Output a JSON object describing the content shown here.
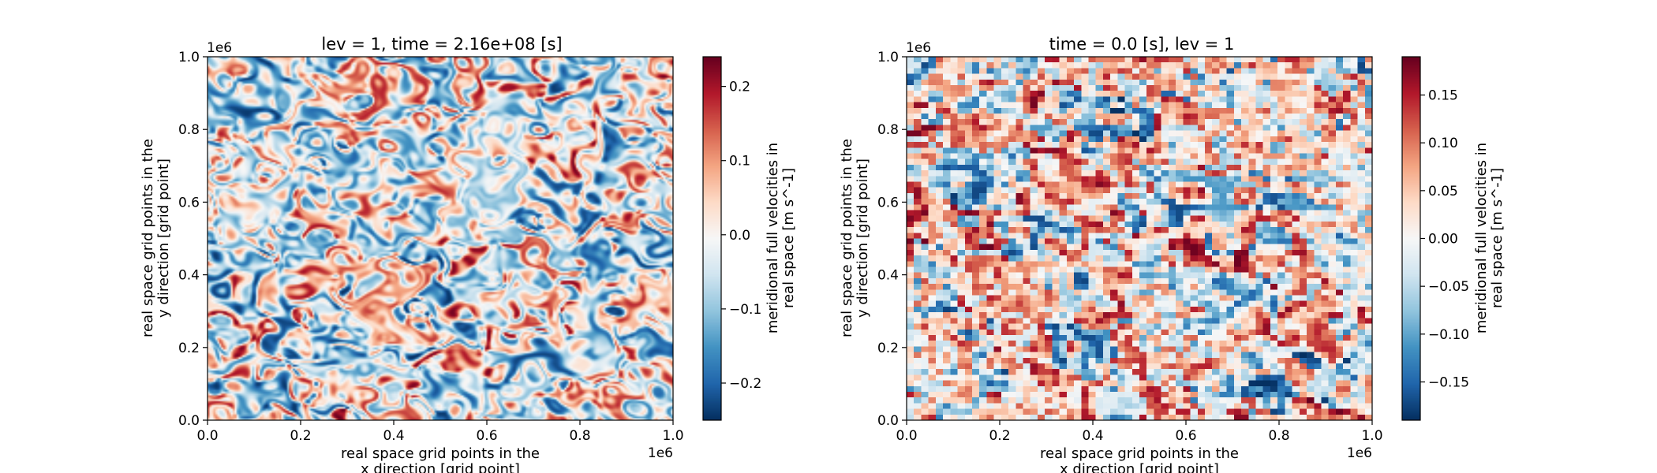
{
  "chart_data": [
    {
      "type": "heatmap",
      "title": "lev = 1, time = 2.16e+08 [s]",
      "xlabel_lines": [
        "real space grid points in the",
        "x direction [grid point]"
      ],
      "ylabel_lines": [
        "real space grid points in the",
        "y direction [grid point]"
      ],
      "xlim": [
        0,
        1.0
      ],
      "ylim": [
        0,
        1.0
      ],
      "x_offset_label": "1e6",
      "y_offset_label": "1e6",
      "x_ticks": [
        "0.0",
        "0.2",
        "0.4",
        "0.6",
        "0.8",
        "1.0"
      ],
      "y_ticks": [
        "0.0",
        "0.2",
        "0.4",
        "0.6",
        "0.8",
        "1.0"
      ],
      "colormap": "RdBu_r",
      "resolution": "fine",
      "value_range": [
        -0.25,
        0.24
      ],
      "colorbar": {
        "label_lines": [
          "meridional full velocities in",
          "real space [m s^-1]"
        ],
        "ticks": [
          -0.2,
          -0.1,
          0.0,
          0.1,
          0.2
        ],
        "tick_labels": [
          "−0.2",
          "−0.1",
          "0.0",
          "0.1",
          "0.2"
        ]
      }
    },
    {
      "type": "heatmap",
      "title": "time = 0.0 [s], lev = 1",
      "xlabel_lines": [
        "real space grid points in the",
        "x direction [grid point]"
      ],
      "ylabel_lines": [
        "real space grid points in the",
        "y direction [grid point]"
      ],
      "xlim": [
        0,
        1.0
      ],
      "ylim": [
        0,
        1.0
      ],
      "x_offset_label": "1e6",
      "y_offset_label": "1e6",
      "x_ticks": [
        "0.0",
        "0.2",
        "0.4",
        "0.6",
        "0.8",
        "1.0"
      ],
      "y_ticks": [
        "0.0",
        "0.2",
        "0.4",
        "0.6",
        "0.8",
        "1.0"
      ],
      "colormap": "RdBu_r",
      "resolution": "coarse",
      "value_range": [
        -0.19,
        0.19
      ],
      "colorbar": {
        "label_lines": [
          "meridional full velocities in",
          "real space [m s^-1]"
        ],
        "ticks": [
          -0.15,
          -0.1,
          -0.05,
          0.0,
          0.05,
          0.1,
          0.15
        ],
        "tick_labels": [
          "−0.15",
          "−0.10",
          "−0.05",
          "0.00",
          "0.05",
          "0.10",
          "0.15"
        ]
      }
    }
  ]
}
